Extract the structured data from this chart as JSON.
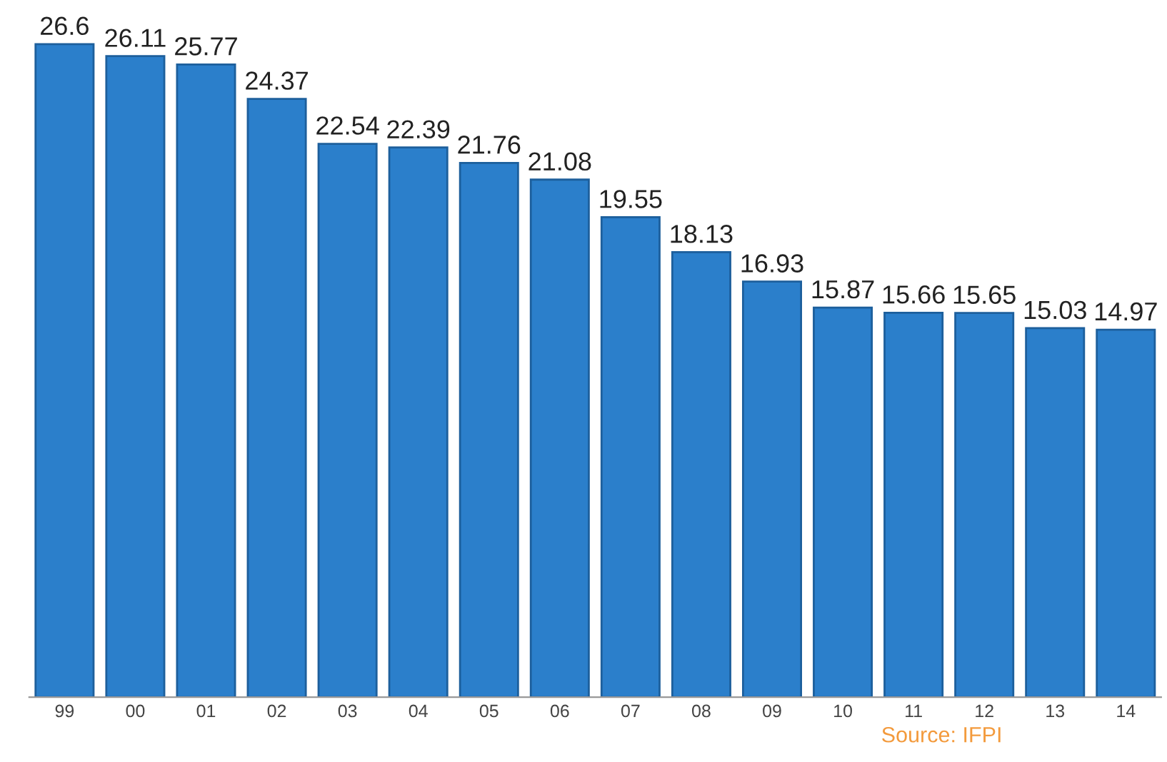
{
  "chart_data": {
    "type": "bar",
    "categories": [
      "99",
      "00",
      "01",
      "02",
      "03",
      "04",
      "05",
      "06",
      "07",
      "08",
      "09",
      "10",
      "11",
      "12",
      "13",
      "14"
    ],
    "values": [
      26.6,
      26.11,
      25.77,
      24.37,
      22.54,
      22.39,
      21.76,
      21.08,
      19.55,
      18.13,
      16.93,
      15.87,
      15.66,
      15.65,
      15.03,
      14.97
    ],
    "color": "#2b7fcb",
    "data_labels": true,
    "grid": false,
    "legend": false,
    "tick_labels": "x",
    "annotations": [
      "Source: IFPI"
    ]
  }
}
